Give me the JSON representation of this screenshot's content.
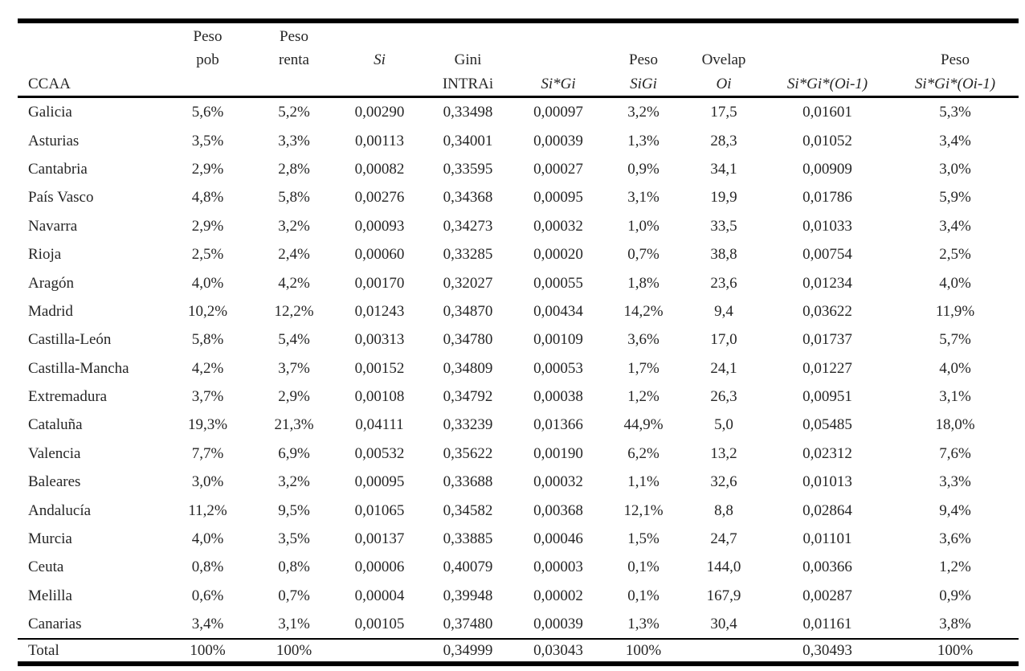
{
  "table": {
    "header": {
      "columns": [
        {
          "id": "ccaa",
          "lines": [
            "",
            "",
            "CCAA"
          ]
        },
        {
          "id": "peso-pob",
          "lines": [
            "Peso",
            "pob",
            ""
          ]
        },
        {
          "id": "peso-renta",
          "lines": [
            "Peso",
            "renta",
            ""
          ]
        },
        {
          "id": "si",
          "lines": [
            "",
            "Si",
            ""
          ]
        },
        {
          "id": "gini-intrai",
          "lines": [
            "",
            "Gini",
            "INTRAi"
          ]
        },
        {
          "id": "si-gi",
          "lines": [
            "",
            "",
            "Si*Gi"
          ]
        },
        {
          "id": "peso-sigi",
          "lines": [
            "",
            "Peso",
            "SiGi"
          ]
        },
        {
          "id": "ovelap-oi",
          "lines": [
            "",
            "Ovelap",
            "Oi"
          ]
        },
        {
          "id": "si-gi-oi-1",
          "lines": [
            "",
            "",
            "Si*Gi*(Oi-1)"
          ]
        },
        {
          "id": "peso-si-gi-oi-1",
          "lines": [
            "",
            "Peso",
            "Si*Gi*(Oi-1)"
          ]
        }
      ]
    },
    "rows": [
      {
        "cells": [
          "Galicia",
          "5,6%",
          "5,2%",
          "0,00290",
          "0,33498",
          "0,00097",
          "3,2%",
          "17,5",
          "0,01601",
          "5,3%"
        ]
      },
      {
        "cells": [
          "Asturias",
          "3,5%",
          "3,3%",
          "0,00113",
          "0,34001",
          "0,00039",
          "1,3%",
          "28,3",
          "0,01052",
          "3,4%"
        ]
      },
      {
        "cells": [
          "Cantabria",
          "2,9%",
          "2,8%",
          "0,00082",
          "0,33595",
          "0,00027",
          "0,9%",
          "34,1",
          "0,00909",
          "3,0%"
        ]
      },
      {
        "cells": [
          "País Vasco",
          "4,8%",
          "5,8%",
          "0,00276",
          "0,34368",
          "0,00095",
          "3,1%",
          "19,9",
          "0,01786",
          "5,9%"
        ]
      },
      {
        "cells": [
          "Navarra",
          "2,9%",
          "3,2%",
          "0,00093",
          "0,34273",
          "0,00032",
          "1,0%",
          "33,5",
          "0,01033",
          "3,4%"
        ]
      },
      {
        "cells": [
          "Rioja",
          "2,5%",
          "2,4%",
          "0,00060",
          "0,33285",
          "0,00020",
          "0,7%",
          "38,8",
          "0,00754",
          "2,5%"
        ]
      },
      {
        "cells": [
          "Aragón",
          "4,0%",
          "4,2%",
          "0,00170",
          "0,32027",
          "0,00055",
          "1,8%",
          "23,6",
          "0,01234",
          "4,0%"
        ]
      },
      {
        "cells": [
          "Madrid",
          "10,2%",
          "12,2%",
          "0,01243",
          "0,34870",
          "0,00434",
          "14,2%",
          "9,4",
          "0,03622",
          "11,9%"
        ]
      },
      {
        "cells": [
          "Castilla-León",
          "5,8%",
          "5,4%",
          "0,00313",
          "0,34780",
          "0,00109",
          "3,6%",
          "17,0",
          "0,01737",
          "5,7%"
        ]
      },
      {
        "cells": [
          "Castilla-Mancha",
          "4,2%",
          "3,7%",
          "0,00152",
          "0,34809",
          "0,00053",
          "1,7%",
          "24,1",
          "0,01227",
          "4,0%"
        ]
      },
      {
        "cells": [
          "Extremadura",
          "3,7%",
          "2,9%",
          "0,00108",
          "0,34792",
          "0,00038",
          "1,2%",
          "26,3",
          "0,00951",
          "3,1%"
        ]
      },
      {
        "cells": [
          "Cataluña",
          "19,3%",
          "21,3%",
          "0,04111",
          "0,33239",
          "0,01366",
          "44,9%",
          "5,0",
          "0,05485",
          "18,0%"
        ]
      },
      {
        "cells": [
          "Valencia",
          "7,7%",
          "6,9%",
          "0,00532",
          "0,35622",
          "0,00190",
          "6,2%",
          "13,2",
          "0,02312",
          "7,6%"
        ]
      },
      {
        "cells": [
          "Baleares",
          "3,0%",
          "3,2%",
          "0,00095",
          "0,33688",
          "0,00032",
          "1,1%",
          "32,6",
          "0,01013",
          "3,3%"
        ]
      },
      {
        "cells": [
          "Andalucía",
          "11,2%",
          "9,5%",
          "0,01065",
          "0,34582",
          "0,00368",
          "12,1%",
          "8,8",
          "0,02864",
          "9,4%"
        ]
      },
      {
        "cells": [
          "Murcia",
          "4,0%",
          "3,5%",
          "0,00137",
          "0,33885",
          "0,00046",
          "1,5%",
          "24,7",
          "0,01101",
          "3,6%"
        ]
      },
      {
        "cells": [
          "Ceuta",
          "0,8%",
          "0,8%",
          "0,00006",
          "0,40079",
          "0,00003",
          "0,1%",
          "144,0",
          "0,00366",
          "1,2%"
        ]
      },
      {
        "cells": [
          "Melilla",
          "0,6%",
          "0,7%",
          "0,00004",
          "0,39948",
          "0,00002",
          "0,1%",
          "167,9",
          "0,00287",
          "0,9%"
        ]
      },
      {
        "cells": [
          "Canarias",
          "3,4%",
          "3,1%",
          "0,00105",
          "0,37480",
          "0,00039",
          "1,3%",
          "30,4",
          "0,01161",
          "3,8%"
        ]
      }
    ],
    "total": {
      "cells": [
        "Total",
        "100%",
        "100%",
        "",
        "0,34999",
        "0,03043",
        "100%",
        "",
        "0,30493",
        "100%"
      ]
    }
  },
  "colors": {
    "text_color": "#262626",
    "rule_color": "#000000",
    "background": "#ffffff"
  }
}
